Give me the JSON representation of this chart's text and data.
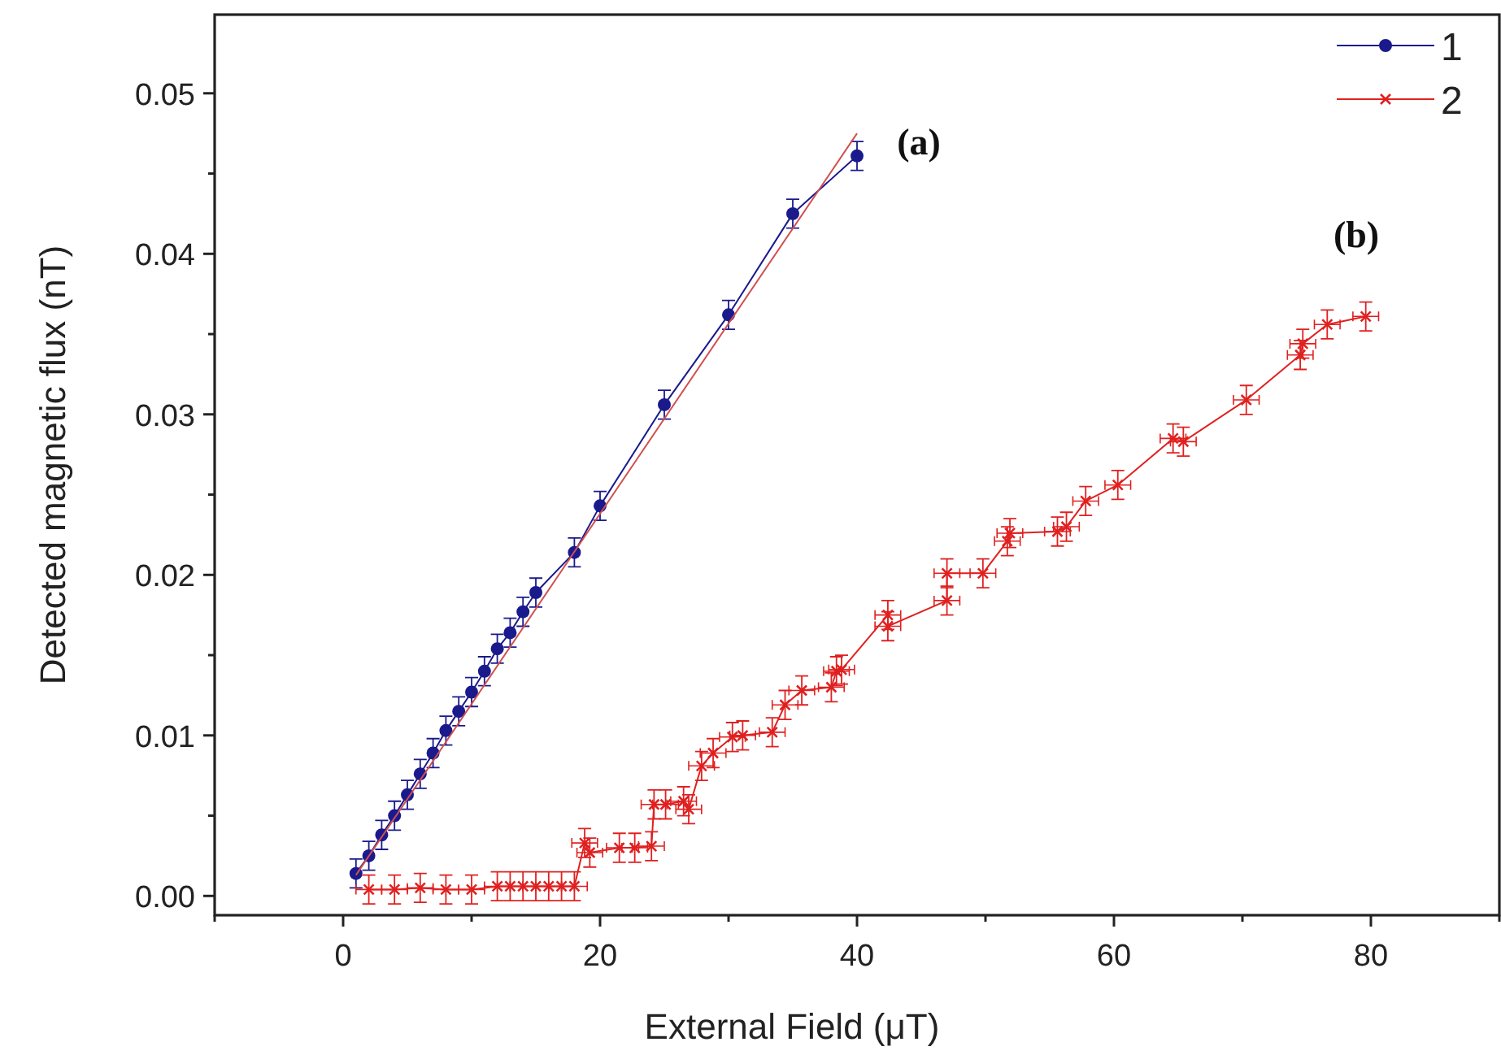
{
  "chart_data": {
    "type": "line",
    "xlabel": "External Field (μT)",
    "ylabel": "Detected magnetic flux (nT)",
    "xlim": [
      -10,
      90
    ],
    "ylim": [
      -0.0012,
      0.0549
    ],
    "xticks": [
      {
        "value": -10,
        "label": null
      },
      0,
      {
        "value": 10,
        "label": null
      },
      20,
      {
        "value": 30,
        "label": null
      },
      40,
      {
        "value": 50,
        "label": null
      },
      60,
      {
        "value": 70,
        "label": null
      },
      80,
      {
        "value": 90,
        "label": null
      }
    ],
    "yticks": [
      {
        "value": 0,
        "label": "0.00"
      },
      {
        "value": 0.005,
        "label": null
      },
      {
        "value": 0.01,
        "label": "0.01"
      },
      {
        "value": 0.015,
        "label": null
      },
      {
        "value": 0.02,
        "label": "0.02"
      },
      {
        "value": 0.025,
        "label": null
      },
      {
        "value": 0.03,
        "label": "0.03"
      },
      {
        "value": 0.035,
        "label": null
      },
      {
        "value": 0.04,
        "label": "0.04"
      },
      {
        "value": 0.045,
        "label": null
      },
      {
        "value": 0.05,
        "label": "0.05"
      }
    ],
    "grid": false,
    "legend": "top right",
    "annotations": [
      "(a)",
      "(b)"
    ],
    "series": [
      {
        "name": "1",
        "color": "#1a1a8c",
        "marker": "circle",
        "x": [
          1,
          2,
          3,
          4,
          5,
          6,
          7,
          8,
          9,
          10,
          11,
          12,
          13,
          14,
          15,
          18,
          20,
          25,
          30,
          35,
          40
        ],
        "values": [
          0.0014,
          0.0025,
          0.0038,
          0.005,
          0.0063,
          0.0076,
          0.0089,
          0.0103,
          0.0115,
          0.0127,
          0.014,
          0.0154,
          0.0164,
          0.0177,
          0.0189,
          0.0214,
          0.0243,
          0.0306,
          0.0362,
          0.0425,
          0.0461
        ],
        "errors": [
          0.0009,
          0.0009,
          0.0009,
          0.0009,
          0.0009,
          0.0009,
          0.0009,
          0.0009,
          0.0009,
          0.0009,
          0.0009,
          0.0009,
          0.0009,
          0.0009,
          0.0009,
          0.0009,
          0.0009,
          0.0009,
          0.0009,
          0.0009,
          0.0009
        ]
      },
      {
        "type": "line",
        "color": "#d05050",
        "marker": "none",
        "x": [
          1,
          40
        ],
        "values": [
          0.0013,
          0.0475
        ]
      },
      {
        "name": "2",
        "color": "#e02020",
        "marker": "cross",
        "x": [
          2,
          4,
          6,
          8,
          10,
          12,
          13,
          14,
          15,
          16,
          17,
          18,
          18.8,
          19.2,
          21.5,
          22.7,
          24,
          24.2,
          25.1,
          26.5,
          26.9,
          27.9,
          28.8,
          30.3,
          31.1,
          33.4,
          34.4,
          35.7,
          38,
          38.4,
          38.8,
          42.4,
          42.4,
          47,
          47,
          49.8,
          51.7,
          51.9,
          55.6,
          56.3,
          57.8,
          60.3,
          64.6,
          65.4,
          70.3,
          74.5,
          74.7,
          76.6,
          79.6
        ],
        "values": [
          0.0004,
          0.0004,
          0.0005,
          0.0004,
          0.0004,
          0.0006,
          0.0006,
          0.0006,
          0.0006,
          0.0006,
          0.0006,
          0.0006,
          0.0033,
          0.0027,
          0.003,
          0.003,
          0.0031,
          0.0057,
          0.0057,
          0.0059,
          0.0054,
          0.0081,
          0.0089,
          0.0099,
          0.01,
          0.0102,
          0.0119,
          0.0128,
          0.013,
          0.014,
          0.0141,
          0.0175,
          0.0168,
          0.0184,
          0.0201,
          0.0201,
          0.0221,
          0.0226,
          0.0227,
          0.023,
          0.0246,
          0.0256,
          0.0285,
          0.0283,
          0.0309,
          0.0337,
          0.0344,
          0.0356,
          0.0361
        ],
        "errors": [
          0.0009,
          0.0009,
          0.0009,
          0.0009,
          0.0009,
          0.0009,
          0.0009,
          0.0009,
          0.0009,
          0.0009,
          0.0009,
          0.0009,
          0.0009,
          0.0009,
          0.0009,
          0.0009,
          0.0009,
          0.0009,
          0.0009,
          0.0009,
          0.0009,
          0.0009,
          0.0009,
          0.0009,
          0.0009,
          0.0009,
          0.0009,
          0.0009,
          0.0009,
          0.0009,
          0.0009,
          0.0009,
          0.0009,
          0.0009,
          0.0009,
          0.0009,
          0.0009,
          0.0009,
          0.0009,
          0.0009,
          0.0009,
          0.0009,
          0.0009,
          0.0009,
          0.0009,
          0.0009,
          0.0009,
          0.0009,
          0.0009
        ],
        "xerrors": [
          1,
          1,
          1,
          1,
          1,
          1,
          1,
          1,
          1,
          1,
          1,
          1,
          1,
          1,
          1,
          1,
          1,
          1,
          1,
          1,
          1,
          1,
          1,
          1,
          1,
          1,
          1,
          1,
          1,
          1,
          1,
          1,
          1,
          1,
          1,
          1,
          1,
          1,
          1,
          1,
          1,
          1,
          1,
          1,
          1,
          1,
          1,
          1,
          1
        ]
      }
    ]
  }
}
